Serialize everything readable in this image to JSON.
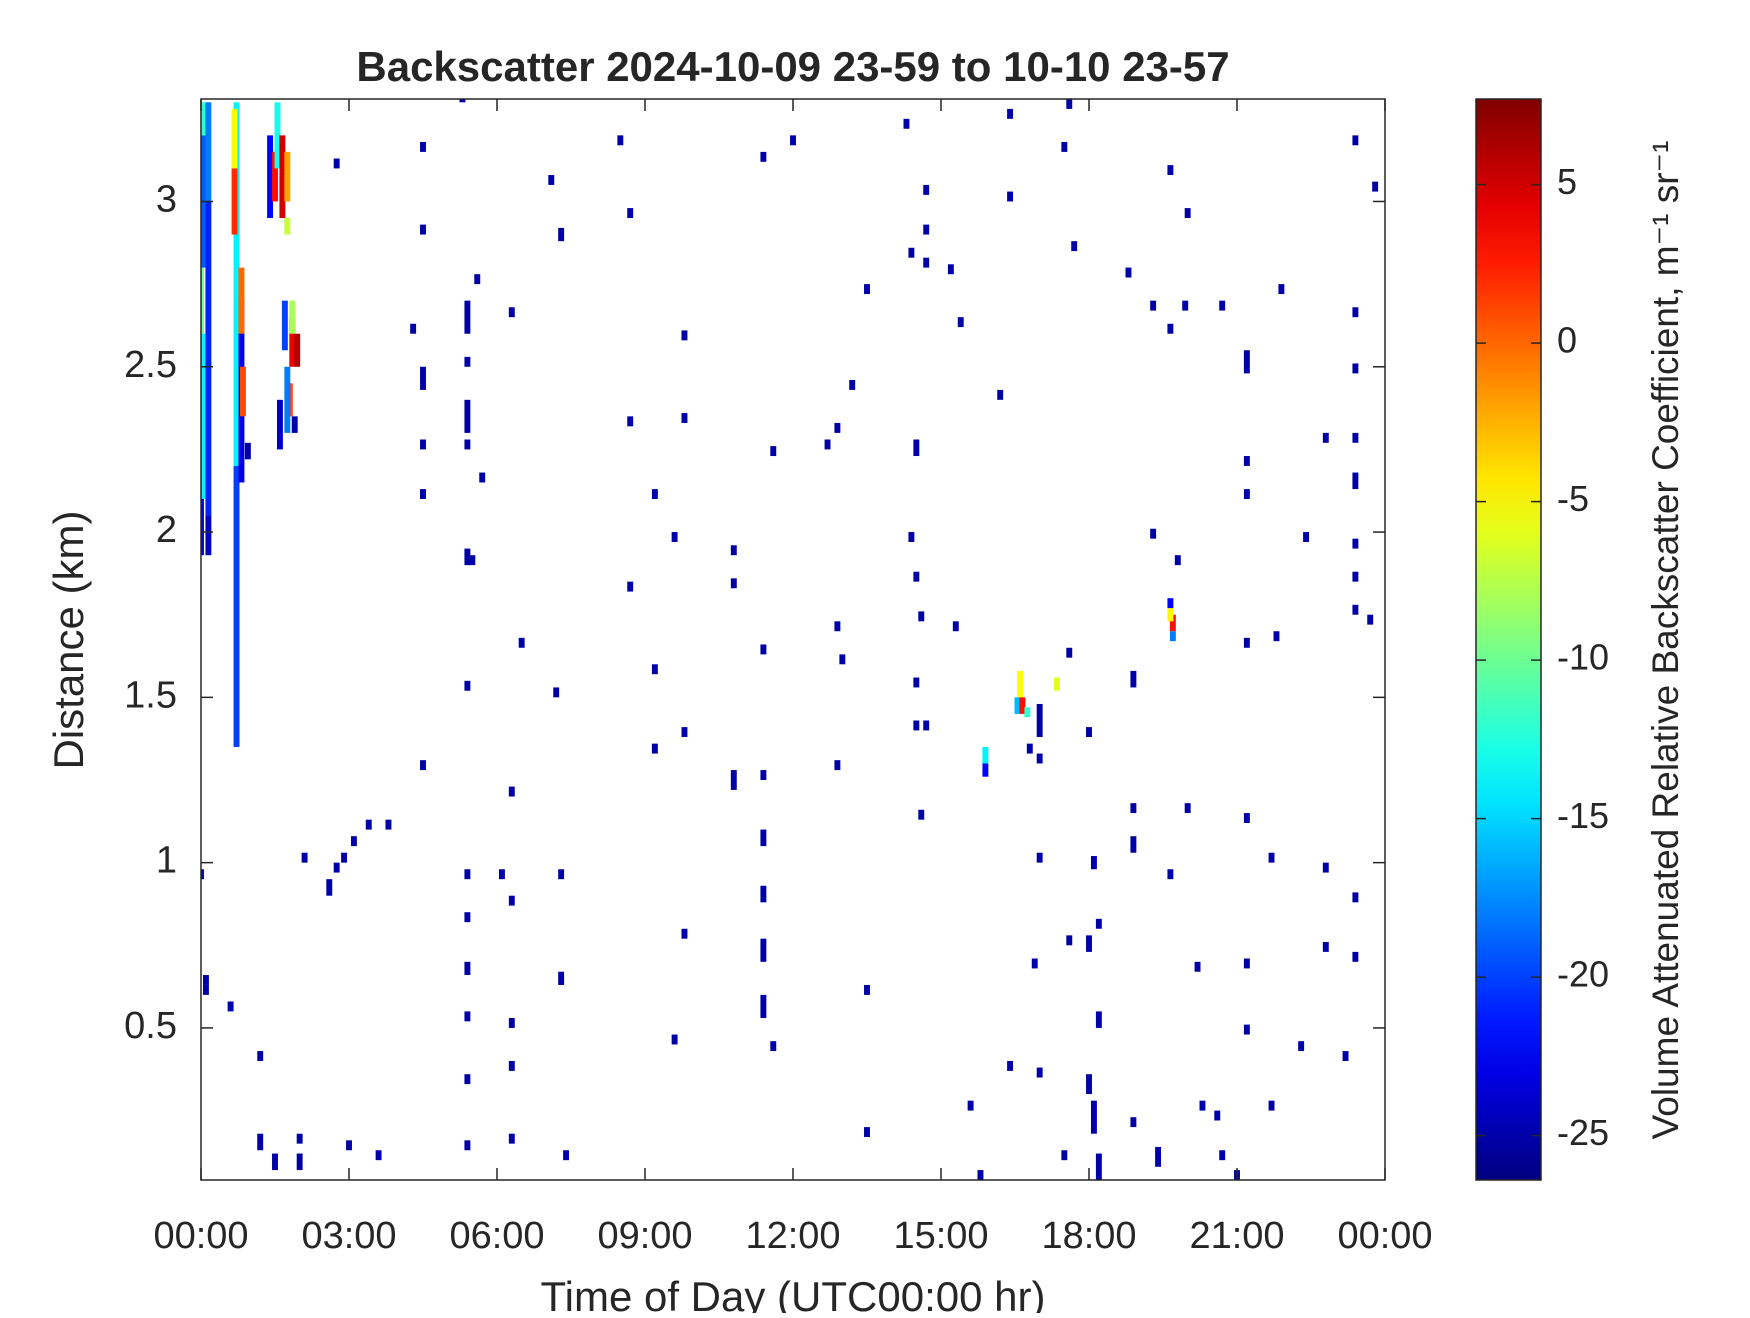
{
  "chart_data": {
    "type": "heatmap",
    "title": "Backscatter 2024-10-09 23-59 to 10-10 23-57",
    "xlabel": "Time of Day (UTC00:00 hr)",
    "ylabel": "Distance (km)",
    "colorbar_label": "Volume Attenuated Relative Backscatter Coefficient, m⁻¹ sr⁻¹",
    "colormap": "jet",
    "xlim": [
      0,
      24
    ],
    "xticks": [
      {
        "value": 0,
        "label": "00:00"
      },
      {
        "value": 3,
        "label": "03:00"
      },
      {
        "value": 6,
        "label": "06:00"
      },
      {
        "value": 9,
        "label": "09:00"
      },
      {
        "value": 12,
        "label": "12:00"
      },
      {
        "value": 15,
        "label": "15:00"
      },
      {
        "value": 18,
        "label": "18:00"
      },
      {
        "value": 21,
        "label": "21:00"
      },
      {
        "value": 24,
        "label": "00:00"
      }
    ],
    "ylim": [
      0.04,
      3.31
    ],
    "yticks": [
      0.5,
      1,
      1.5,
      2,
      2.5,
      3
    ],
    "clim": [
      -26.4,
      7.7
    ],
    "cticks": [
      -25,
      -20,
      -15,
      -10,
      -5,
      0,
      5
    ],
    "cells": [
      [
        0.0,
        1.93,
        2.1,
        -23
      ],
      [
        0.05,
        2.1,
        2.6,
        -14
      ],
      [
        0.0,
        2.6,
        2.8,
        -10
      ],
      [
        0.05,
        2.8,
        3.2,
        -19
      ],
      [
        0.05,
        3.2,
        3.3,
        -12
      ],
      [
        0.15,
        1.93,
        2.05,
        -24
      ],
      [
        0.15,
        2.05,
        3.0,
        -21
      ],
      [
        0.15,
        3.0,
        3.3,
        -18
      ],
      [
        0.72,
        1.35,
        2.2,
        -20
      ],
      [
        0.72,
        2.2,
        3.3,
        -14
      ],
      [
        0.82,
        2.15,
        2.7,
        -23
      ],
      [
        0.85,
        2.35,
        2.5,
        1
      ],
      [
        0.82,
        2.6,
        2.8,
        0
      ],
      [
        0.68,
        2.9,
        3.1,
        2
      ],
      [
        0.68,
        3.1,
        3.28,
        -5
      ],
      [
        0.95,
        2.22,
        2.27,
        -25
      ],
      [
        1.4,
        2.95,
        3.2,
        -22
      ],
      [
        1.5,
        3.0,
        3.15,
        3
      ],
      [
        1.55,
        3.1,
        3.3,
        -13
      ],
      [
        1.65,
        2.95,
        3.2,
        5
      ],
      [
        1.75,
        3.0,
        3.15,
        -2
      ],
      [
        1.75,
        2.9,
        2.95,
        -7
      ],
      [
        1.7,
        2.55,
        2.7,
        -20
      ],
      [
        1.85,
        2.5,
        2.65,
        4
      ],
      [
        1.95,
        2.5,
        2.6,
        6
      ],
      [
        1.8,
        2.35,
        2.45,
        1
      ],
      [
        1.75,
        2.3,
        2.5,
        -18
      ],
      [
        1.6,
        2.25,
        2.4,
        -24
      ],
      [
        1.9,
        2.3,
        2.35,
        -25
      ],
      [
        1.85,
        2.6,
        2.7,
        -8
      ],
      [
        16.55,
        1.45,
        1.5,
        -16
      ],
      [
        16.6,
        1.5,
        1.58,
        -5
      ],
      [
        16.65,
        1.45,
        1.5,
        3
      ],
      [
        16.75,
        1.44,
        1.47,
        -12
      ],
      [
        17.0,
        1.38,
        1.48,
        -25
      ],
      [
        17.35,
        1.52,
        1.56,
        -6
      ],
      [
        15.9,
        1.26,
        1.3,
        -22
      ],
      [
        15.9,
        1.3,
        1.35,
        -14
      ],
      [
        19.7,
        1.7,
        1.75,
        3
      ],
      [
        19.65,
        1.73,
        1.77,
        -5
      ],
      [
        19.7,
        1.67,
        1.7,
        -18
      ],
      [
        19.65,
        1.77,
        1.8,
        -22
      ],
      [
        0.0,
        0.95,
        0.98,
        -25
      ],
      [
        0.1,
        0.63,
        0.66,
        -25
      ],
      [
        0.1,
        0.6,
        0.63,
        -25
      ],
      [
        0.6,
        0.55,
        0.58,
        -25
      ],
      [
        1.2,
        0.4,
        0.43,
        -25
      ],
      [
        1.2,
        0.13,
        0.18,
        -25
      ],
      [
        1.5,
        0.07,
        0.12,
        -25
      ],
      [
        2.0,
        0.07,
        0.12,
        -25
      ],
      [
        2.0,
        0.15,
        0.18,
        -25
      ],
      [
        2.1,
        1.0,
        1.03,
        -25
      ],
      [
        2.6,
        0.9,
        0.95,
        -25
      ],
      [
        2.75,
        0.97,
        1.0,
        -25
      ],
      [
        2.9,
        1.0,
        1.03,
        -25
      ],
      [
        3.1,
        1.05,
        1.08,
        -25
      ],
      [
        3.4,
        1.1,
        1.13,
        -25
      ],
      [
        3.8,
        1.1,
        1.13,
        -25
      ],
      [
        3.0,
        0.13,
        0.16,
        -25
      ],
      [
        3.6,
        0.1,
        0.13,
        -25
      ],
      [
        2.75,
        3.1,
        3.13,
        -25
      ],
      [
        4.5,
        3.15,
        3.18,
        -25
      ],
      [
        4.5,
        2.9,
        2.93,
        -25
      ],
      [
        4.3,
        2.6,
        2.63,
        -25
      ],
      [
        4.5,
        2.43,
        2.5,
        -25
      ],
      [
        4.5,
        2.25,
        2.28,
        -25
      ],
      [
        4.5,
        2.1,
        2.13,
        -25
      ],
      [
        4.5,
        1.28,
        1.31,
        -25
      ],
      [
        5.3,
        3.3,
        3.31,
        -25
      ],
      [
        5.4,
        2.6,
        2.7,
        -25
      ],
      [
        5.4,
        2.5,
        2.53,
        -25
      ],
      [
        5.4,
        2.3,
        2.4,
        -25
      ],
      [
        5.4,
        2.25,
        2.28,
        -25
      ],
      [
        5.4,
        1.9,
        1.95,
        -25
      ],
      [
        5.5,
        1.9,
        1.93,
        -25
      ],
      [
        5.4,
        1.52,
        1.55,
        -25
      ],
      [
        5.4,
        0.95,
        0.98,
        -25
      ],
      [
        5.4,
        0.82,
        0.85,
        -25
      ],
      [
        5.4,
        0.66,
        0.7,
        -25
      ],
      [
        5.4,
        0.52,
        0.55,
        -25
      ],
      [
        5.4,
        0.33,
        0.36,
        -25
      ],
      [
        5.4,
        0.13,
        0.16,
        -25
      ],
      [
        5.6,
        2.75,
        2.78,
        -25
      ],
      [
        5.7,
        2.15,
        2.18,
        -25
      ],
      [
        6.3,
        2.65,
        2.68,
        -25
      ],
      [
        6.5,
        1.65,
        1.68,
        -25
      ],
      [
        6.3,
        1.2,
        1.23,
        -25
      ],
      [
        6.1,
        0.95,
        0.98,
        -25
      ],
      [
        6.3,
        0.87,
        0.9,
        -25
      ],
      [
        6.3,
        0.5,
        0.53,
        -25
      ],
      [
        6.3,
        0.37,
        0.4,
        -25
      ],
      [
        6.3,
        0.15,
        0.18,
        -25
      ],
      [
        7.1,
        3.05,
        3.08,
        -25
      ],
      [
        7.3,
        2.88,
        2.92,
        -25
      ],
      [
        7.2,
        1.5,
        1.53,
        -25
      ],
      [
        7.3,
        0.63,
        0.67,
        -25
      ],
      [
        7.3,
        0.95,
        0.98,
        -25
      ],
      [
        7.4,
        0.1,
        0.13,
        -25
      ],
      [
        8.5,
        3.17,
        3.2,
        -25
      ],
      [
        8.7,
        2.95,
        2.98,
        -25
      ],
      [
        8.7,
        2.32,
        2.35,
        -25
      ],
      [
        8.7,
        1.82,
        1.85,
        -25
      ],
      [
        9.2,
        2.1,
        2.13,
        -25
      ],
      [
        9.2,
        1.57,
        1.6,
        -25
      ],
      [
        9.2,
        1.33,
        1.36,
        -25
      ],
      [
        9.6,
        1.97,
        2.0,
        -25
      ],
      [
        9.8,
        2.58,
        2.61,
        -25
      ],
      [
        9.8,
        2.33,
        2.36,
        -25
      ],
      [
        9.8,
        1.38,
        1.41,
        -25
      ],
      [
        9.8,
        0.77,
        0.8,
        -25
      ],
      [
        9.6,
        0.45,
        0.48,
        -25
      ],
      [
        10.8,
        1.93,
        1.96,
        -25
      ],
      [
        10.8,
        1.83,
        1.86,
        -25
      ],
      [
        10.8,
        1.22,
        1.28,
        -25
      ],
      [
        11.4,
        1.63,
        1.66,
        -25
      ],
      [
        11.4,
        1.25,
        1.28,
        -25
      ],
      [
        11.4,
        1.05,
        1.1,
        -25
      ],
      [
        11.4,
        0.88,
        0.93,
        -25
      ],
      [
        11.4,
        0.7,
        0.77,
        -25
      ],
      [
        11.4,
        0.53,
        0.6,
        -25
      ],
      [
        11.4,
        3.12,
        3.15,
        -25
      ],
      [
        11.6,
        2.23,
        2.26,
        -25
      ],
      [
        11.6,
        0.43,
        0.46,
        -25
      ],
      [
        12.0,
        3.17,
        3.2,
        -25
      ],
      [
        12.7,
        2.25,
        2.28,
        -25
      ],
      [
        12.9,
        2.3,
        2.33,
        -25
      ],
      [
        12.9,
        1.7,
        1.73,
        -25
      ],
      [
        13.0,
        1.6,
        1.63,
        -25
      ],
      [
        12.9,
        1.28,
        1.31,
        -25
      ],
      [
        13.2,
        2.43,
        2.46,
        -25
      ],
      [
        13.5,
        2.72,
        2.75,
        -25
      ],
      [
        13.5,
        0.6,
        0.63,
        -25
      ],
      [
        13.5,
        0.17,
        0.2,
        -25
      ],
      [
        14.3,
        3.22,
        3.25,
        -25
      ],
      [
        14.4,
        2.83,
        2.86,
        -25
      ],
      [
        14.5,
        2.23,
        2.28,
        -25
      ],
      [
        14.4,
        1.97,
        2.0,
        -25
      ],
      [
        14.5,
        1.85,
        1.88,
        -25
      ],
      [
        14.6,
        1.73,
        1.76,
        -25
      ],
      [
        14.5,
        1.53,
        1.56,
        -25
      ],
      [
        14.5,
        1.4,
        1.43,
        -25
      ],
      [
        14.6,
        1.13,
        1.16,
        -25
      ],
      [
        14.7,
        3.02,
        3.05,
        -25
      ],
      [
        14.7,
        2.9,
        2.93,
        -25
      ],
      [
        14.7,
        2.8,
        2.83,
        -25
      ],
      [
        14.7,
        1.4,
        1.43,
        -25
      ],
      [
        15.2,
        2.78,
        2.81,
        -25
      ],
      [
        15.3,
        1.7,
        1.73,
        -25
      ],
      [
        15.4,
        2.62,
        2.65,
        -25
      ],
      [
        15.6,
        0.25,
        0.28,
        -25
      ],
      [
        15.8,
        0.04,
        0.07,
        -25
      ],
      [
        16.2,
        2.4,
        2.43,
        -25
      ],
      [
        16.4,
        3.25,
        3.28,
        -25
      ],
      [
        16.4,
        3.0,
        3.03,
        -25
      ],
      [
        16.4,
        0.37,
        0.4,
        -25
      ],
      [
        16.8,
        1.33,
        1.36,
        -25
      ],
      [
        16.9,
        0.68,
        0.71,
        -25
      ],
      [
        17.0,
        1.0,
        1.03,
        -25
      ],
      [
        17.0,
        0.35,
        0.38,
        -25
      ],
      [
        17.0,
        1.3,
        1.33,
        -25
      ],
      [
        17.6,
        1.62,
        1.65,
        -25
      ],
      [
        17.7,
        2.85,
        2.88,
        -25
      ],
      [
        17.6,
        0.75,
        0.78,
        -25
      ],
      [
        17.5,
        0.1,
        0.13,
        -25
      ],
      [
        17.6,
        3.28,
        3.31,
        -25
      ],
      [
        17.5,
        3.15,
        3.18,
        -25
      ],
      [
        18.0,
        1.38,
        1.41,
        -25
      ],
      [
        18.0,
        0.73,
        0.78,
        -25
      ],
      [
        18.0,
        0.3,
        0.36,
        -25
      ],
      [
        18.1,
        0.18,
        0.28,
        -25
      ],
      [
        18.2,
        0.04,
        0.12,
        -25
      ],
      [
        18.2,
        0.8,
        0.83,
        -25
      ],
      [
        18.2,
        0.5,
        0.55,
        -25
      ],
      [
        18.1,
        0.98,
        1.02,
        -25
      ],
      [
        18.8,
        2.77,
        2.8,
        -25
      ],
      [
        18.9,
        1.53,
        1.58,
        -25
      ],
      [
        18.9,
        1.15,
        1.18,
        -25
      ],
      [
        18.9,
        1.03,
        1.08,
        -25
      ],
      [
        18.9,
        0.2,
        0.23,
        -25
      ],
      [
        19.3,
        2.67,
        2.7,
        -25
      ],
      [
        19.3,
        1.98,
        2.01,
        -25
      ],
      [
        19.4,
        0.08,
        0.14,
        -25
      ],
      [
        19.65,
        3.08,
        3.11,
        -25
      ],
      [
        19.65,
        2.6,
        2.63,
        -25
      ],
      [
        19.65,
        0.95,
        0.98,
        -25
      ],
      [
        19.8,
        1.9,
        1.93,
        -25
      ],
      [
        19.95,
        2.67,
        2.7,
        -25
      ],
      [
        20.0,
        2.95,
        2.98,
        -25
      ],
      [
        20.0,
        1.15,
        1.18,
        -25
      ],
      [
        20.2,
        0.67,
        0.7,
        -25
      ],
      [
        20.3,
        0.25,
        0.28,
        -25
      ],
      [
        20.6,
        0.22,
        0.25,
        -25
      ],
      [
        20.7,
        2.67,
        2.7,
        -25
      ],
      [
        20.7,
        0.1,
        0.13,
        -25
      ],
      [
        21.2,
        2.48,
        2.55,
        -25
      ],
      [
        21.2,
        2.2,
        2.23,
        -25
      ],
      [
        21.2,
        2.1,
        2.13,
        -25
      ],
      [
        21.2,
        1.65,
        1.68,
        -25
      ],
      [
        21.2,
        1.12,
        1.15,
        -25
      ],
      [
        21.2,
        0.68,
        0.71,
        -25
      ],
      [
        21.2,
        0.48,
        0.51,
        -25
      ],
      [
        21.0,
        0.04,
        0.07,
        -25
      ],
      [
        21.7,
        1.0,
        1.03,
        -25
      ],
      [
        21.7,
        0.25,
        0.28,
        -25
      ],
      [
        21.8,
        1.67,
        1.7,
        -25
      ],
      [
        21.9,
        2.72,
        2.75,
        -25
      ],
      [
        22.3,
        0.43,
        0.46,
        -25
      ],
      [
        22.4,
        1.97,
        2.0,
        -25
      ],
      [
        22.8,
        2.27,
        2.3,
        -25
      ],
      [
        22.8,
        0.97,
        1.0,
        -25
      ],
      [
        22.8,
        0.73,
        0.76,
        -25
      ],
      [
        23.2,
        0.4,
        0.43,
        -25
      ],
      [
        23.4,
        3.17,
        3.2,
        -25
      ],
      [
        23.4,
        2.65,
        2.68,
        -25
      ],
      [
        23.4,
        2.48,
        2.51,
        -25
      ],
      [
        23.4,
        2.27,
        2.3,
        -25
      ],
      [
        23.4,
        2.13,
        2.18,
        -25
      ],
      [
        23.4,
        1.95,
        1.98,
        -25
      ],
      [
        23.4,
        1.85,
        1.88,
        -25
      ],
      [
        23.4,
        1.75,
        1.78,
        -25
      ],
      [
        23.4,
        0.88,
        0.91,
        -25
      ],
      [
        23.4,
        0.7,
        0.73,
        -25
      ],
      [
        23.7,
        1.72,
        1.75,
        -25
      ],
      [
        23.8,
        3.03,
        3.06,
        -25
      ]
    ]
  }
}
